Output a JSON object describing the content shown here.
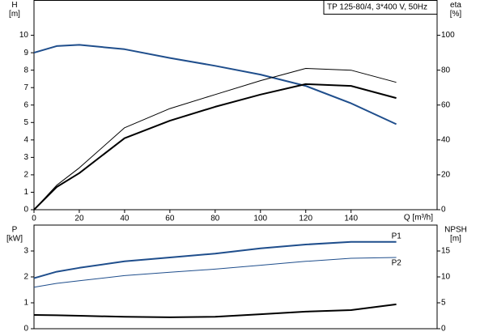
{
  "chart_data": [
    {
      "type": "line",
      "title": "TP 125-80/4, 3*400 V, 50Hz",
      "ylabel": "H",
      "yunit": "[m]",
      "y2label": "eta",
      "y2unit": "[%]",
      "xlabel": "Q [m³/h]",
      "x": [
        0,
        10,
        20,
        40,
        60,
        80,
        100,
        120,
        140,
        160
      ],
      "xlim": [
        0,
        178
      ],
      "xticks": [
        0,
        20,
        40,
        60,
        80,
        100,
        120,
        140
      ],
      "ylim": [
        0,
        12
      ],
      "yticks": [
        0,
        1,
        2,
        3,
        4,
        5,
        6,
        7,
        8,
        9,
        10
      ],
      "y2lim": [
        0,
        120
      ],
      "y2ticks": [
        0,
        20,
        40,
        60,
        80,
        100
      ],
      "series": [
        {
          "color": "#1f4e8c",
          "width": 2,
          "axis": "y",
          "values": [
            9.0,
            9.38,
            9.45,
            9.2,
            8.7,
            8.25,
            7.75,
            7.1,
            6.1,
            4.9
          ]
        },
        {
          "color": "#000000",
          "width": 1,
          "axis": "y2",
          "values": [
            0,
            14,
            24,
            47,
            58,
            66,
            74,
            81,
            80,
            73
          ]
        },
        {
          "color": "#000000",
          "width": 2,
          "axis": "y2",
          "values": [
            0,
            13,
            21,
            41,
            51,
            59,
            66,
            72,
            71,
            64
          ]
        }
      ]
    },
    {
      "type": "line",
      "ylabel": "P",
      "yunit": "[kW]",
      "y2label": "NPSH",
      "y2unit": "[m]",
      "x": [
        0,
        10,
        20,
        40,
        60,
        80,
        100,
        120,
        140,
        160
      ],
      "xlim": [
        0,
        178
      ],
      "ylim": [
        0,
        4
      ],
      "yticks": [
        0,
        1,
        2,
        3
      ],
      "y2lim": [
        0,
        20
      ],
      "y2ticks": [
        0,
        5,
        10,
        15
      ],
      "series": [
        {
          "name": "P1",
          "color": "#1f4e8c",
          "width": 2,
          "axis": "y",
          "values": [
            1.95,
            2.2,
            2.35,
            2.6,
            2.75,
            2.9,
            3.1,
            3.25,
            3.35,
            3.35
          ]
        },
        {
          "name": "P2",
          "color": "#1f4e8c",
          "width": 1,
          "axis": "y",
          "values": [
            1.6,
            1.75,
            1.85,
            2.05,
            2.18,
            2.3,
            2.45,
            2.6,
            2.72,
            2.75
          ]
        },
        {
          "color": "#000000",
          "width": 2,
          "axis": "y2",
          "values": [
            2.65,
            2.6,
            2.5,
            2.3,
            2.2,
            2.3,
            2.8,
            3.3,
            3.6,
            4.7
          ]
        }
      ]
    }
  ]
}
